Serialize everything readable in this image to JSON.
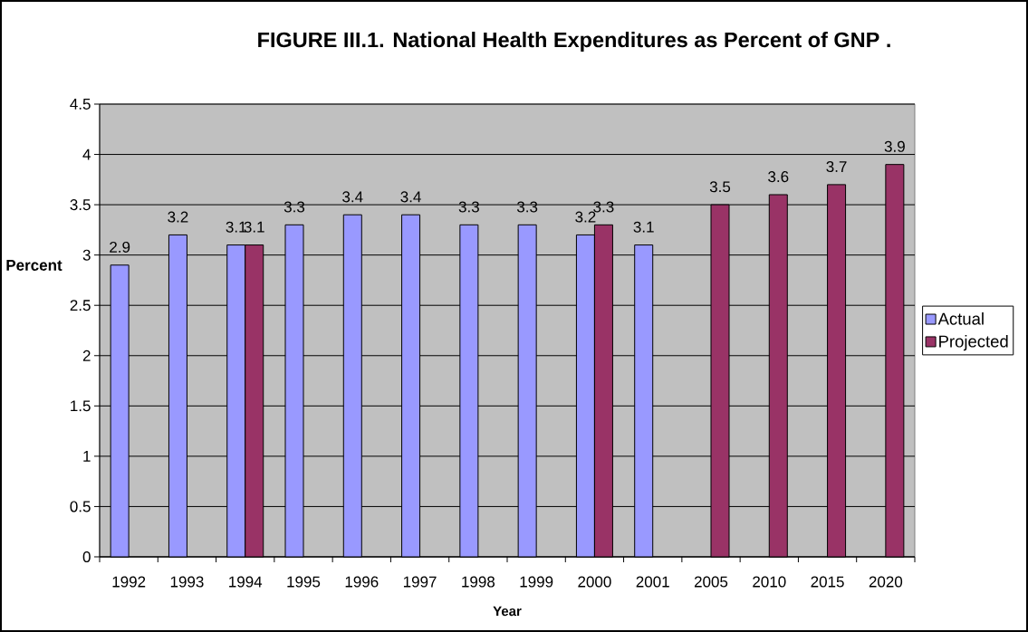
{
  "chart_data": {
    "type": "bar",
    "title": "FIGURE III.1. National Health Expenditures as Percent of GNP .",
    "xlabel": "Year",
    "ylabel": "Percent",
    "categories": [
      "1992",
      "1993",
      "1994",
      "1995",
      "1996",
      "1997",
      "1998",
      "1999",
      "2000",
      "2001",
      "2005",
      "2010",
      "2015",
      "2020"
    ],
    "series": [
      {
        "name": "Actual",
        "color": "#9999ff",
        "values": [
          2.9,
          3.2,
          3.1,
          3.3,
          3.4,
          3.4,
          3.3,
          3.3,
          3.2,
          3.1,
          null,
          null,
          null,
          null
        ]
      },
      {
        "name": "Projected",
        "color": "#993366",
        "values": [
          null,
          null,
          3.1,
          null,
          null,
          null,
          null,
          null,
          3.3,
          null,
          3.5,
          3.6,
          3.7,
          3.9
        ]
      }
    ],
    "ylim": [
      0,
      4.5
    ],
    "yticks": [
      0,
      0.5,
      1,
      1.5,
      2,
      2.5,
      3,
      3.5,
      4,
      4.5
    ],
    "grid": "y",
    "legend": "right",
    "data_labels": true
  }
}
